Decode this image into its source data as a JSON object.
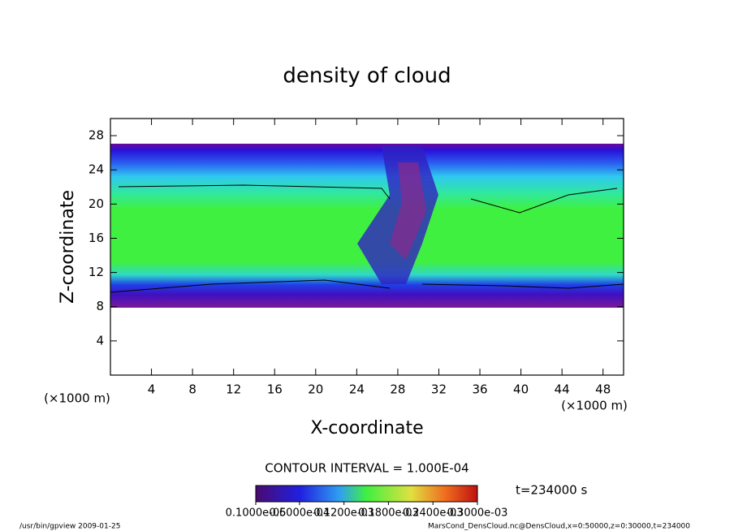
{
  "chart_data": {
    "type": "field",
    "title": "density of cloud",
    "x_label": "X-coordinate",
    "y_label": "Z-coordinate",
    "x_unit": "(×1000 m)",
    "y_unit": "(×1000 m)",
    "xlim": [
      0,
      50
    ],
    "xticks": [
      4,
      8,
      12,
      16,
      20,
      24,
      28,
      32,
      36,
      40,
      44,
      48
    ],
    "ylim": [
      0,
      30
    ],
    "yticks": [
      4,
      8,
      12,
      16,
      20,
      24,
      28
    ],
    "contour_note": "CONTOUR INTERVAL = 1.000E-04",
    "time_note": "t=234000 s",
    "clim": [
      1e-06,
      0.0003
    ],
    "cticks": [
      {
        "value": 1e-06,
        "label": "0.1000e-05"
      },
      {
        "value": 6e-05,
        "label": "0.6000e-04"
      },
      {
        "value": 0.00012,
        "label": "0.1200e-03"
      },
      {
        "value": 0.00018,
        "label": "0.1800e-03"
      },
      {
        "value": 0.00024,
        "label": "0.2400e-03"
      },
      {
        "value": 0.0003,
        "label": "0.3000e-03"
      }
    ],
    "footer_left": "/usr/bin/gpview  2009-01-25",
    "footer_right": "MarsCond_DensCloud.nc@DensCloud,x=0:50000,z=0:30000,t=234000"
  }
}
